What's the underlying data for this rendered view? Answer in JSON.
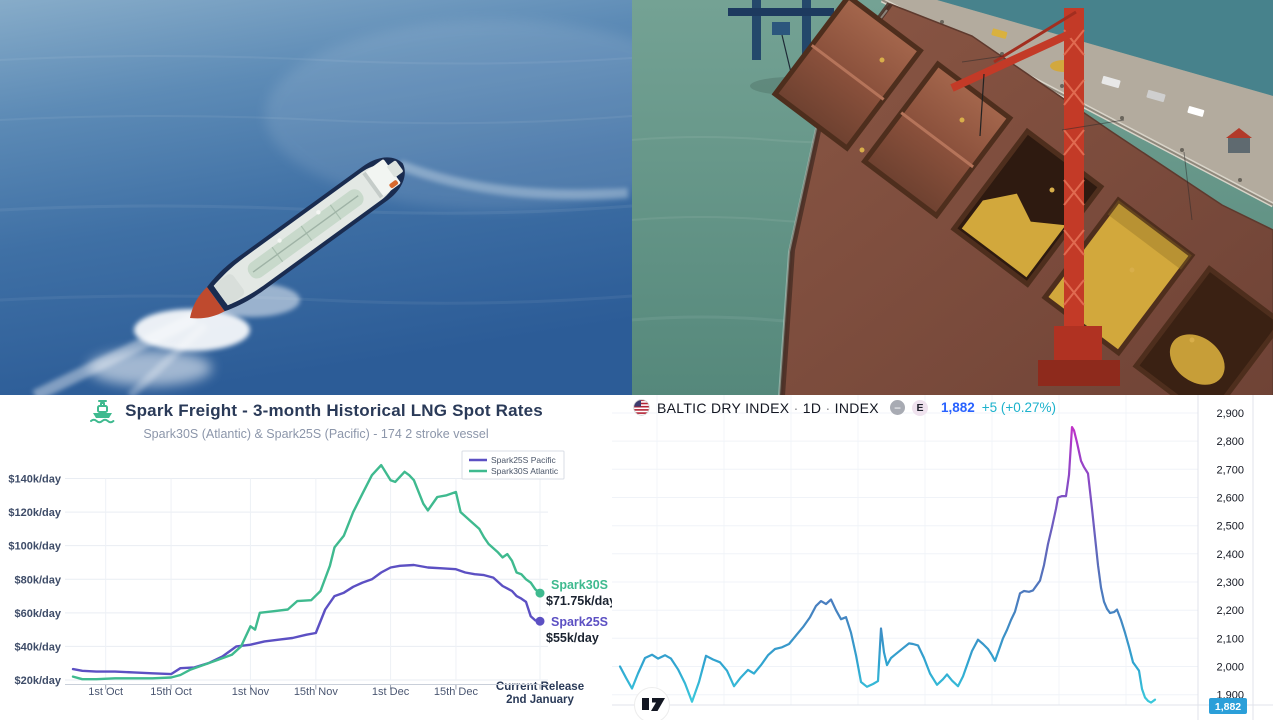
{
  "photos": {
    "left_alt": "Aerial photo of an LNG carrier sailing at sea with white wake",
    "right_alt": "Aerial photo of a bulk carrier loading yellow grain at a port with a red crane"
  },
  "spark": {
    "title": "Spark Freight - 3-month Historical LNG Spot Rates",
    "subtitle": "Spark30S (Atlantic) & Spark25S (Pacific) - 174 2 stroke vessel",
    "logo_icon": "spark-ship-icon",
    "logo_color": "#3FBA8F"
  },
  "baltic": {
    "flag_icon": "us-flag-icon",
    "symbol": "BALTIC DRY INDEX",
    "interval": "1D",
    "market": "INDEX",
    "sep": "·",
    "minus_badge": "−",
    "source_badge": "E",
    "last": "1,882",
    "change": "+5 (+0.27%)",
    "last_color": "#2962FF",
    "change_color": "#1CB2CC",
    "logo": "tradingview-logo"
  },
  "chart_data": [
    {
      "id": "spark",
      "type": "line",
      "title": "Spark Freight - 3-month Historical LNG Spot Rates",
      "subtitle": "Spark30S (Atlantic) & Spark25S (Pacific) - 174 2 stroke vessel",
      "grid": true,
      "legend_position": "top-right",
      "ylim": [
        15,
        150
      ],
      "ytick_labels": [
        "$140k/day",
        "$120k/day",
        "$100k/day",
        "$80k/day",
        "$60k/day",
        "$40k/day",
        "$20k/day"
      ],
      "ytick_values": [
        140,
        120,
        100,
        80,
        60,
        40,
        20
      ],
      "xticks": [
        {
          "day": 7,
          "label": "1st Oct"
        },
        {
          "day": 21,
          "label": "15th Oct"
        },
        {
          "day": 38,
          "label": "1st Nov"
        },
        {
          "day": 52,
          "label": "15th Nov"
        },
        {
          "day": 68,
          "label": "1st Dec"
        },
        {
          "day": 82,
          "label": "15th Dec"
        },
        {
          "day": 100,
          "label": "Current Release\n2nd January"
        }
      ],
      "series": [
        {
          "name": "Spark25S Pacific",
          "color": "#5C50C3",
          "end_label": "Spark25S",
          "end_value": "$55k/day",
          "points": [
            [
              0,
              26.5
            ],
            [
              2,
              25.5
            ],
            [
              5,
              25
            ],
            [
              9,
              25
            ],
            [
              13,
              24.5
            ],
            [
              17,
              24
            ],
            [
              21,
              23.5
            ],
            [
              23,
              27
            ],
            [
              26,
              27.5
            ],
            [
              29,
              30
            ],
            [
              32,
              34
            ],
            [
              35,
              40
            ],
            [
              38,
              41
            ],
            [
              41,
              43
            ],
            [
              44,
              44
            ],
            [
              47,
              45
            ],
            [
              50,
              47
            ],
            [
              52,
              48
            ],
            [
              54,
              62
            ],
            [
              56,
              70
            ],
            [
              58,
              72
            ],
            [
              60,
              75.5
            ],
            [
              62,
              78
            ],
            [
              64,
              80
            ],
            [
              66,
              84
            ],
            [
              68,
              87
            ],
            [
              70,
              88
            ],
            [
              73,
              88.5
            ],
            [
              76,
              87
            ],
            [
              79,
              86.5
            ],
            [
              82,
              86
            ],
            [
              84,
              84
            ],
            [
              86,
              83
            ],
            [
              88,
              82.5
            ],
            [
              90,
              81
            ],
            [
              92,
              76
            ],
            [
              94,
              73
            ],
            [
              95,
              70
            ],
            [
              96,
              68.5
            ],
            [
              97,
              66.5
            ],
            [
              98,
              58
            ],
            [
              99,
              55.5
            ],
            [
              100,
              55
            ]
          ]
        },
        {
          "name": "Spark30S Atlantic",
          "color": "#3FBA8F",
          "end_label": "Spark30S",
          "end_value": "$71.75k/day",
          "points": [
            [
              0,
              22
            ],
            [
              2,
              20.5
            ],
            [
              5,
              20.5
            ],
            [
              9,
              21
            ],
            [
              13,
              21
            ],
            [
              17,
              21
            ],
            [
              21,
              21.5
            ],
            [
              23,
              23
            ],
            [
              25,
              26
            ],
            [
              28,
              29
            ],
            [
              31,
              32
            ],
            [
              34,
              35
            ],
            [
              36,
              40
            ],
            [
              37,
              46
            ],
            [
              38,
              52
            ],
            [
              39,
              50
            ],
            [
              40,
              60
            ],
            [
              43,
              61
            ],
            [
              46,
              62
            ],
            [
              48,
              67
            ],
            [
              51,
              67.5
            ],
            [
              53,
              73
            ],
            [
              55,
              88
            ],
            [
              56,
              99
            ],
            [
              58,
              106
            ],
            [
              60,
              120
            ],
            [
              62,
              131
            ],
            [
              64,
              142
            ],
            [
              66,
              148
            ],
            [
              68,
              139
            ],
            [
              69,
              138
            ],
            [
              71,
              144
            ],
            [
              72,
              142
            ],
            [
              73,
              139
            ],
            [
              75,
              125
            ],
            [
              76,
              121
            ],
            [
              78,
              129
            ],
            [
              80,
              130
            ],
            [
              82,
              132
            ],
            [
              83,
              120
            ],
            [
              85,
              115
            ],
            [
              87,
              110
            ],
            [
              88,
              105
            ],
            [
              89,
              101
            ],
            [
              91,
              96
            ],
            [
              92,
              93
            ],
            [
              93,
              95
            ],
            [
              94,
              91
            ],
            [
              95,
              84
            ],
            [
              96,
              83
            ],
            [
              97,
              80
            ],
            [
              98,
              78
            ],
            [
              99,
              74
            ],
            [
              100,
              71.75
            ]
          ]
        }
      ]
    },
    {
      "id": "baltic",
      "type": "line",
      "title": "BALTIC DRY INDEX · 1D · INDEX",
      "last_value": 1882,
      "last_label": "1,882",
      "change_label": "+5 (+0.27%)",
      "badge_color": "#2B9FD9",
      "line_gradient": [
        "#D42BC8",
        "#A53BC9",
        "#7C52C3",
        "#5A6CBA",
        "#4287C2",
        "#2FA7D1",
        "#3BC8DB"
      ],
      "grid": true,
      "ytick_labels": [
        "2,900",
        "2,800",
        "2,700",
        "2,600",
        "2,500",
        "2,400",
        "2,300",
        "2,200",
        "2,100",
        "2,000",
        "1,900"
      ],
      "ytick_values": [
        2900,
        2800,
        2700,
        2600,
        2500,
        2400,
        2300,
        2200,
        2100,
        2000,
        1900
      ],
      "points": [
        [
          0,
          2000
        ],
        [
          6,
          1960
        ],
        [
          12,
          1922
        ],
        [
          18,
          1975
        ],
        [
          25,
          2030
        ],
        [
          32,
          2042
        ],
        [
          38,
          2028
        ],
        [
          45,
          2040
        ],
        [
          51,
          2028
        ],
        [
          58,
          1990
        ],
        [
          65,
          1940
        ],
        [
          72,
          1875
        ],
        [
          79,
          1945
        ],
        [
          86,
          2038
        ],
        [
          93,
          2025
        ],
        [
          100,
          2015
        ],
        [
          107,
          1985
        ],
        [
          114,
          1930
        ],
        [
          121,
          1962
        ],
        [
          128,
          1988
        ],
        [
          134,
          1975
        ],
        [
          141,
          2005
        ],
        [
          148,
          2040
        ],
        [
          155,
          2062
        ],
        [
          162,
          2068
        ],
        [
          169,
          2080
        ],
        [
          176,
          2110
        ],
        [
          183,
          2140
        ],
        [
          190,
          2175
        ],
        [
          196,
          2215
        ],
        [
          201,
          2232
        ],
        [
          206,
          2222
        ],
        [
          211,
          2238
        ],
        [
          216,
          2200
        ],
        [
          221,
          2168
        ],
        [
          226,
          2175
        ],
        [
          231,
          2120
        ],
        [
          236,
          2040
        ],
        [
          241,
          1945
        ],
        [
          247,
          1928
        ],
        [
          253,
          1938
        ],
        [
          258,
          1948
        ],
        [
          261,
          2135
        ],
        [
          264,
          2050
        ],
        [
          267,
          2005
        ],
        [
          271,
          2030
        ],
        [
          275,
          2042
        ],
        [
          283,
          2065
        ],
        [
          289,
          2082
        ],
        [
          293,
          2080
        ],
        [
          298,
          2075
        ],
        [
          304,
          2030
        ],
        [
          310,
          1975
        ],
        [
          317,
          1935
        ],
        [
          323,
          1955
        ],
        [
          327,
          1972
        ],
        [
          332,
          1950
        ],
        [
          338,
          1930
        ],
        [
          343,
          1965
        ],
        [
          347,
          2005
        ],
        [
          352,
          2055
        ],
        [
          358,
          2095
        ],
        [
          363,
          2080
        ],
        [
          368,
          2062
        ],
        [
          372,
          2040
        ],
        [
          375,
          2020
        ],
        [
          379,
          2060
        ],
        [
          383,
          2100
        ],
        [
          387,
          2130
        ],
        [
          391,
          2165
        ],
        [
          395,
          2195
        ],
        [
          400,
          2260
        ],
        [
          404,
          2268
        ],
        [
          409,
          2265
        ],
        [
          413,
          2270
        ],
        [
          417,
          2290
        ],
        [
          420,
          2305
        ],
        [
          424,
          2360
        ],
        [
          428,
          2435
        ],
        [
          432,
          2495
        ],
        [
          436,
          2560
        ],
        [
          438,
          2600
        ],
        [
          442,
          2605
        ],
        [
          446,
          2605
        ],
        [
          449,
          2680
        ],
        [
          452,
          2850
        ],
        [
          454,
          2838
        ],
        [
          457,
          2795
        ],
        [
          461,
          2730
        ],
        [
          464,
          2708
        ],
        [
          468,
          2685
        ],
        [
          472,
          2560
        ],
        [
          475,
          2460
        ],
        [
          478,
          2360
        ],
        [
          481,
          2280
        ],
        [
          484,
          2230
        ],
        [
          487,
          2205
        ],
        [
          490,
          2190
        ],
        [
          494,
          2193
        ],
        [
          497,
          2202
        ],
        [
          501,
          2165
        ],
        [
          505,
          2120
        ],
        [
          509,
          2070
        ],
        [
          513,
          2015
        ],
        [
          516,
          2000
        ],
        [
          519,
          1985
        ],
        [
          522,
          1920
        ],
        [
          525,
          1890
        ],
        [
          528,
          1878
        ],
        [
          531,
          1872
        ],
        [
          535,
          1882
        ]
      ]
    }
  ]
}
